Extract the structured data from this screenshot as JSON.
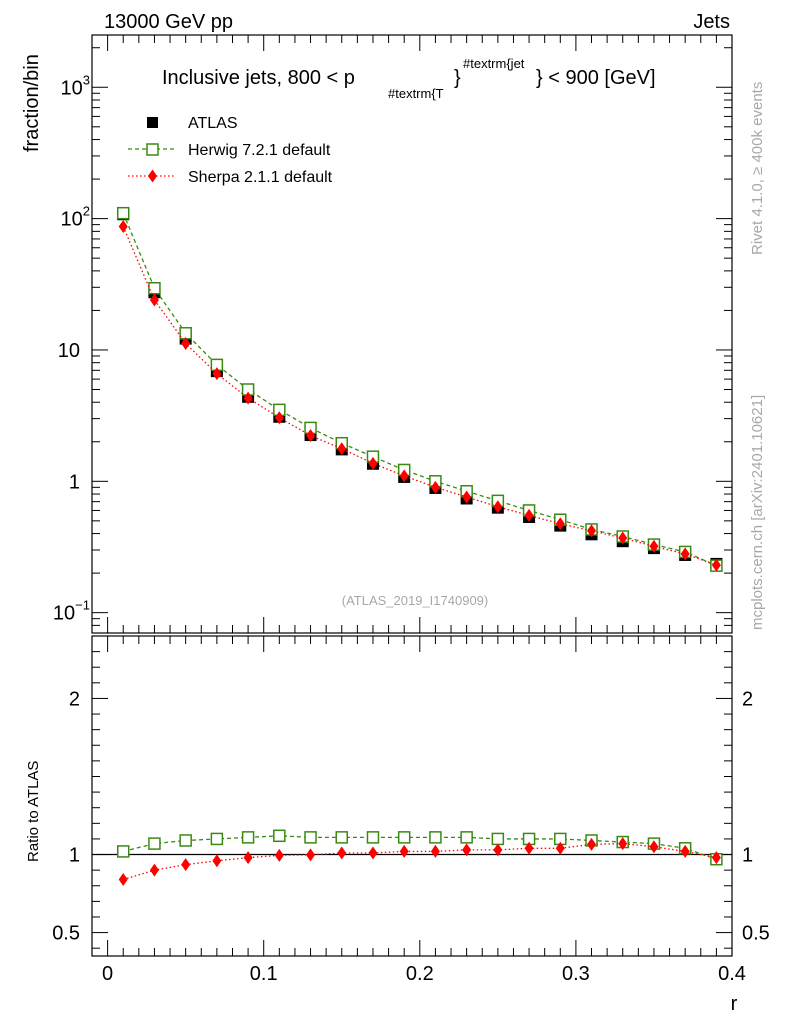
{
  "header": {
    "energy_label": "13000 GeV pp",
    "category_label": "Jets"
  },
  "side_labels": {
    "rivet": "Rivet 4.1.0, ≥ 400k events",
    "mcplots": "mcplots.cern.ch [arXiv:2401.10621]"
  },
  "chart_data": [
    {
      "type": "scatter",
      "title_parts": {
        "main": "Inclusive jets, 800 < p",
        "subscript": "#textrm{T",
        "brace": "}",
        "superscript": "#textrm{jet",
        "tail": "} < 900 [GeV]"
      },
      "ylabel": "fraction/bin",
      "yscale": "log",
      "ylim": [
        0.07,
        2500
      ],
      "xlim": [
        -0.01,
        0.4
      ],
      "y_ticks": [
        {
          "value": 0.1,
          "base": "10",
          "exp": "−1"
        },
        {
          "value": 1,
          "base": "1",
          "exp": ""
        },
        {
          "value": 10,
          "base": "10",
          "exp": ""
        },
        {
          "value": 100,
          "base": "10",
          "exp": "2"
        },
        {
          "value": 1000,
          "base": "10",
          "exp": "3"
        }
      ],
      "watermark": "(ATLAS_2019_I1740909)",
      "legend": {
        "position": "top-left",
        "entries": [
          "ATLAS",
          "Herwig 7.2.1 default",
          "Sherpa 2.1.1 default"
        ]
      },
      "colors": {
        "atlas": "#000000",
        "herwig": "#3a8a12",
        "sherpa": "#ff0000"
      },
      "x": [
        0.01,
        0.03,
        0.05,
        0.07,
        0.09,
        0.11,
        0.13,
        0.15,
        0.17,
        0.19,
        0.21,
        0.23,
        0.25,
        0.27,
        0.29,
        0.31,
        0.33,
        0.35,
        0.37,
        0.39
      ],
      "series": [
        {
          "name": "ATLAS",
          "marker": "filled-square",
          "values": [
            108,
            27.5,
            12.2,
            6.9,
            4.4,
            3.1,
            2.25,
            1.75,
            1.36,
            1.08,
            0.89,
            0.74,
            0.63,
            0.535,
            0.46,
            0.395,
            0.35,
            0.31,
            0.275,
            0.235
          ]
        },
        {
          "name": "Herwig 7.2.1 default",
          "marker": "open-square",
          "values": [
            110,
            29.5,
            13.4,
            7.7,
            5.0,
            3.5,
            2.55,
            1.95,
            1.54,
            1.22,
            1.0,
            0.84,
            0.71,
            0.6,
            0.51,
            0.43,
            0.38,
            0.33,
            0.29,
            0.228
          ]
        },
        {
          "name": "Sherpa 2.1.1 default",
          "marker": "filled-diamond",
          "values": [
            87,
            24,
            11.2,
            6.6,
            4.3,
            3.05,
            2.23,
            1.77,
            1.37,
            1.1,
            0.9,
            0.76,
            0.64,
            0.55,
            0.475,
            0.42,
            0.37,
            0.32,
            0.28,
            0.23
          ]
        }
      ]
    },
    {
      "type": "scatter",
      "ylabel": "Ratio to ATLAS",
      "xlabel": "r",
      "ylim": [
        0.35,
        2.4
      ],
      "xlim": [
        -0.01,
        0.4
      ],
      "y_ticks": [
        {
          "value": 0.5,
          "label": "0.5"
        },
        {
          "value": 1,
          "label": "1"
        },
        {
          "value": 2,
          "label": "2"
        }
      ],
      "x_ticks": [
        {
          "value": 0,
          "label": "0"
        },
        {
          "value": 0.1,
          "label": "0.1"
        },
        {
          "value": 0.2,
          "label": "0.2"
        },
        {
          "value": 0.3,
          "label": "0.3"
        },
        {
          "value": 0.4,
          "label": "0.4"
        }
      ],
      "reference_line": 1,
      "x": [
        0.01,
        0.03,
        0.05,
        0.07,
        0.09,
        0.11,
        0.13,
        0.15,
        0.17,
        0.19,
        0.21,
        0.23,
        0.25,
        0.27,
        0.29,
        0.31,
        0.33,
        0.35,
        0.37,
        0.39
      ],
      "series": [
        {
          "name": "Herwig 7.2.1 default",
          "marker": "open-square",
          "values": [
            1.02,
            1.07,
            1.09,
            1.1,
            1.11,
            1.12,
            1.11,
            1.11,
            1.11,
            1.11,
            1.11,
            1.11,
            1.1,
            1.1,
            1.1,
            1.09,
            1.08,
            1.07,
            1.04,
            0.97
          ]
        },
        {
          "name": "Sherpa 2.1.1 default",
          "marker": "filled-diamond",
          "values": [
            0.84,
            0.9,
            0.935,
            0.96,
            0.98,
            0.995,
            0.998,
            1.01,
            1.01,
            1.02,
            1.02,
            1.03,
            1.03,
            1.04,
            1.04,
            1.065,
            1.07,
            1.05,
            1.02,
            0.98
          ]
        }
      ]
    }
  ]
}
